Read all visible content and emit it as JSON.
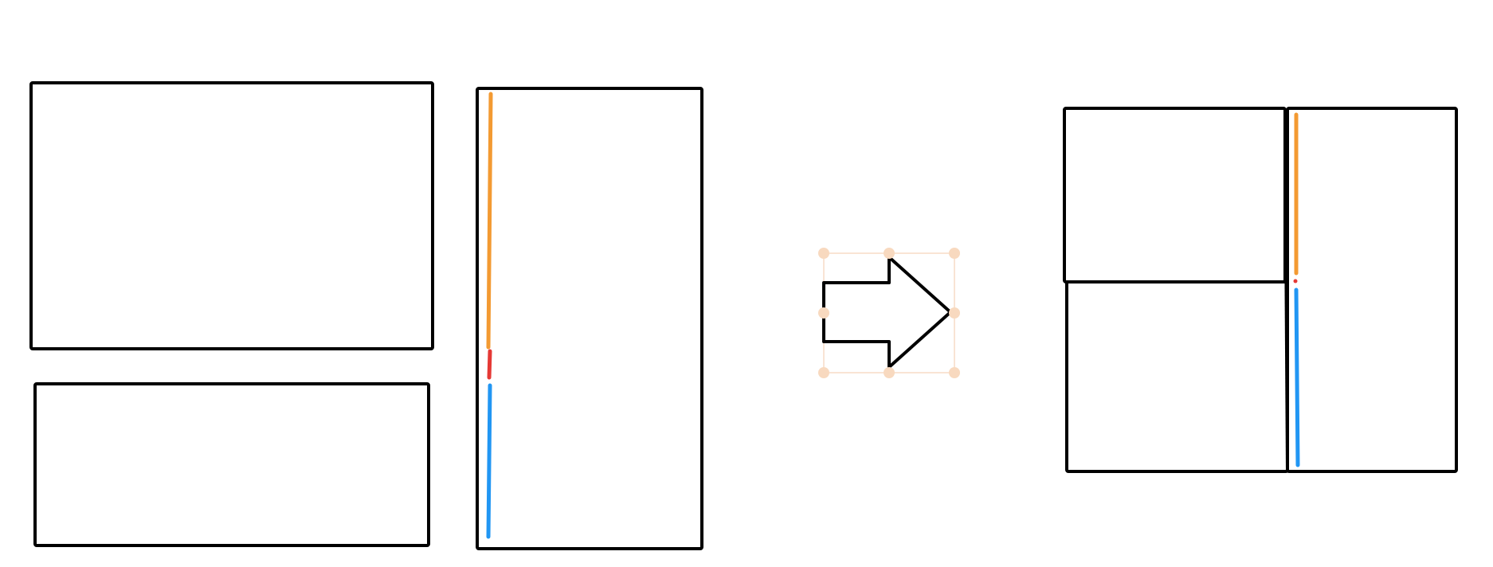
{
  "diagram": {
    "kind": "split-panel-illustration",
    "colors": {
      "frame": "#000000",
      "guide_top": "#f39a32",
      "guide_middle": "#e53935",
      "guide_bottom": "#2196f3",
      "selection": "#f8d9bf",
      "background": "#ffffff"
    },
    "icons": {
      "transition": "arrow-right-icon"
    }
  }
}
